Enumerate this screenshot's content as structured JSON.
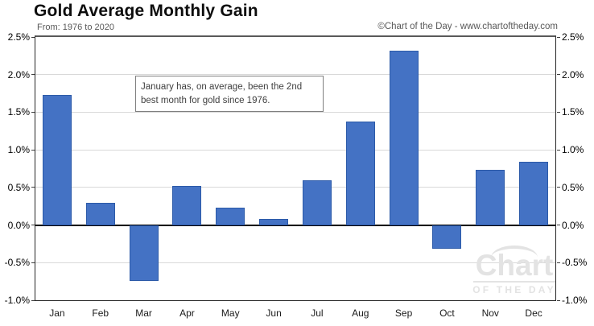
{
  "header": {
    "title": "Gold Average Monthly Gain",
    "subtitle": "From: 1976 to 2020",
    "copyright": "©Chart of the Day - www.chartoftheday.com"
  },
  "annotation_text": "January has, on average, been the 2nd best month for gold since 1976.",
  "watermark": {
    "line1": "Chart",
    "line2": "OF THE DAY"
  },
  "colors": {
    "bar_fill": "#4472C4",
    "bar_border": "#2C5AA8",
    "gridline": "#D9D9D9",
    "zero_line": "#000000",
    "muted_text": "#595959",
    "watermark": "#E3E3E3"
  },
  "chart_data": {
    "type": "bar",
    "title": "Gold Average Monthly Gain",
    "subtitle": "From: 1976 to 2020",
    "xlabel": "",
    "ylabel": "",
    "unit": "%",
    "categories": [
      "Jan",
      "Feb",
      "Mar",
      "Apr",
      "May",
      "Jun",
      "Jul",
      "Aug",
      "Sep",
      "Oct",
      "Nov",
      "Dec"
    ],
    "values": [
      1.73,
      0.3,
      -0.74,
      0.52,
      0.23,
      0.08,
      0.59,
      1.38,
      2.32,
      -0.31,
      0.73,
      0.84
    ],
    "ylim": [
      -1.0,
      2.5
    ],
    "ytick_step": 0.5,
    "ytick_labels": [
      "2.5%",
      "2.0%",
      "1.5%",
      "1.0%",
      "0.5%",
      "0.0%",
      "-0.5%",
      "-1.0%"
    ],
    "grid": true,
    "legend": "none",
    "annotation": "January has, on average, been the 2nd best month for gold since 1976."
  }
}
